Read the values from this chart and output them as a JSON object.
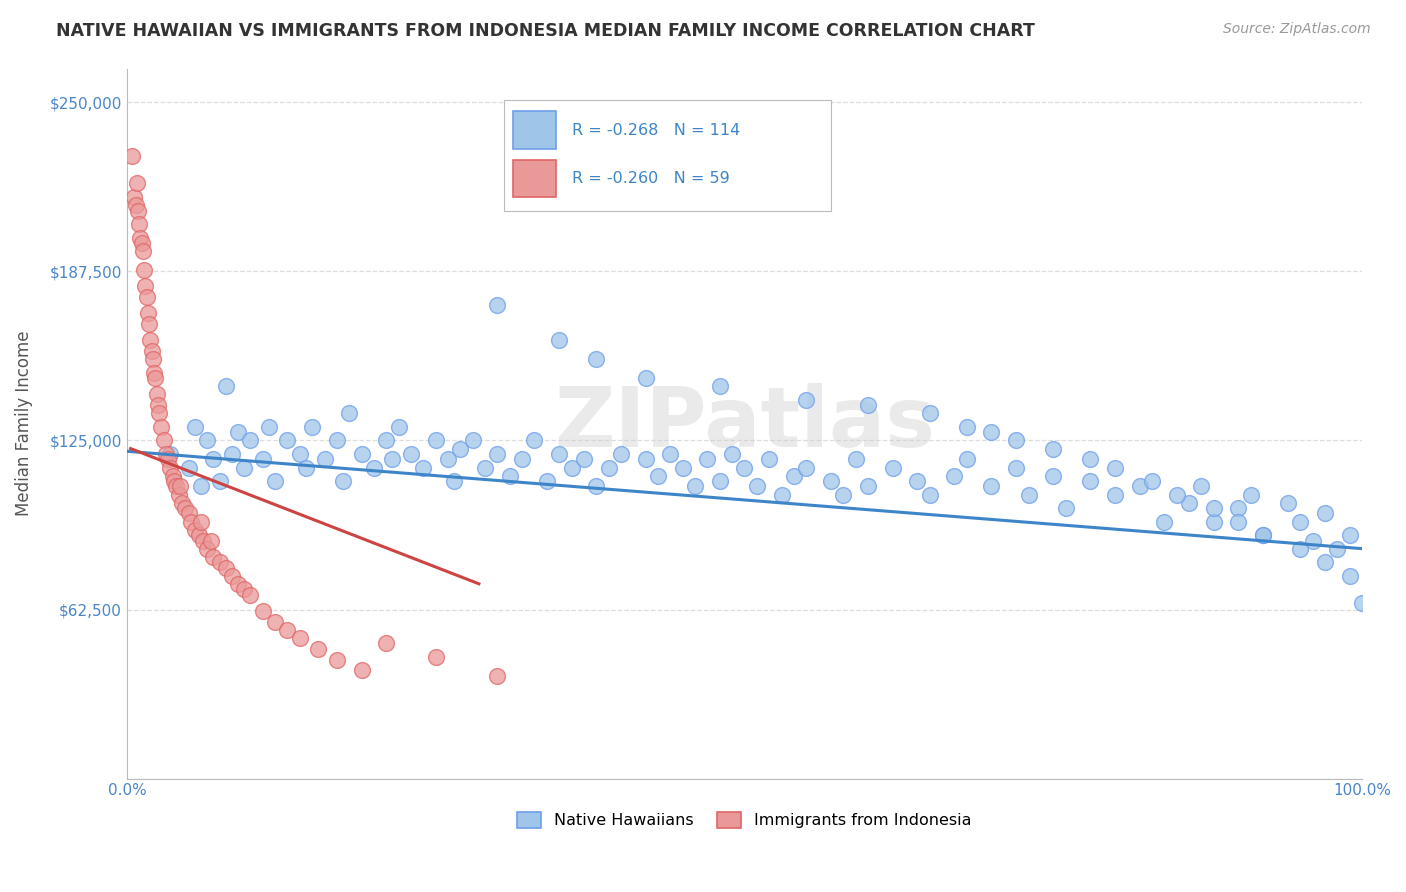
{
  "title": "NATIVE HAWAIIAN VS IMMIGRANTS FROM INDONESIA MEDIAN FAMILY INCOME CORRELATION CHART",
  "source": "Source: ZipAtlas.com",
  "ylabel": "Median Family Income",
  "xlim": [
    0,
    1.0
  ],
  "ylim": [
    0,
    262500
  ],
  "ytick_vals": [
    0,
    62500,
    125000,
    187500,
    250000
  ],
  "ytick_labels": [
    "",
    "$62,500",
    "$125,000",
    "$187,500",
    "$250,000"
  ],
  "xtick_vals": [
    0.0,
    1.0
  ],
  "xtick_labels": [
    "0.0%",
    "100.0%"
  ],
  "R_blue": "-0.268",
  "N_blue": "114",
  "R_pink": "-0.260",
  "N_pink": "59",
  "blue_fill": "#9fc5e8",
  "blue_edge": "#6d9eeb",
  "pink_fill": "#ea9999",
  "pink_edge": "#e06666",
  "blue_line": "#3d85c8",
  "pink_line": "#cc4444",
  "watermark": "ZIPatlas",
  "bg": "#ffffff",
  "grid_color": "#dddddd",
  "title_color": "#333333",
  "source_color": "#999999",
  "axis_tick_color": "#4a86c8",
  "blue_scatter_x": [
    0.035,
    0.05,
    0.055,
    0.06,
    0.065,
    0.07,
    0.075,
    0.08,
    0.085,
    0.09,
    0.095,
    0.1,
    0.11,
    0.115,
    0.12,
    0.13,
    0.14,
    0.145,
    0.15,
    0.16,
    0.17,
    0.175,
    0.18,
    0.19,
    0.2,
    0.21,
    0.215,
    0.22,
    0.23,
    0.24,
    0.25,
    0.26,
    0.265,
    0.27,
    0.28,
    0.29,
    0.3,
    0.31,
    0.32,
    0.33,
    0.34,
    0.35,
    0.36,
    0.37,
    0.38,
    0.39,
    0.4,
    0.42,
    0.43,
    0.44,
    0.45,
    0.46,
    0.47,
    0.48,
    0.49,
    0.5,
    0.51,
    0.52,
    0.53,
    0.54,
    0.55,
    0.57,
    0.58,
    0.59,
    0.6,
    0.62,
    0.64,
    0.65,
    0.67,
    0.68,
    0.7,
    0.72,
    0.73,
    0.75,
    0.76,
    0.78,
    0.8,
    0.82,
    0.84,
    0.86,
    0.87,
    0.88,
    0.9,
    0.91,
    0.92,
    0.94,
    0.95,
    0.96,
    0.97,
    0.98,
    0.99,
    1.0,
    0.3,
    0.35,
    0.38,
    0.42,
    0.48,
    0.55,
    0.6,
    0.65,
    0.68,
    0.7,
    0.72,
    0.75,
    0.78,
    0.8,
    0.83,
    0.85,
    0.88,
    0.9,
    0.92,
    0.95,
    0.97,
    0.99
  ],
  "blue_scatter_y": [
    120000,
    115000,
    130000,
    108000,
    125000,
    118000,
    110000,
    145000,
    120000,
    128000,
    115000,
    125000,
    118000,
    130000,
    110000,
    125000,
    120000,
    115000,
    130000,
    118000,
    125000,
    110000,
    135000,
    120000,
    115000,
    125000,
    118000,
    130000,
    120000,
    115000,
    125000,
    118000,
    110000,
    122000,
    125000,
    115000,
    120000,
    112000,
    118000,
    125000,
    110000,
    120000,
    115000,
    118000,
    108000,
    115000,
    120000,
    118000,
    112000,
    120000,
    115000,
    108000,
    118000,
    110000,
    120000,
    115000,
    108000,
    118000,
    105000,
    112000,
    115000,
    110000,
    105000,
    118000,
    108000,
    115000,
    110000,
    105000,
    112000,
    118000,
    108000,
    115000,
    105000,
    112000,
    100000,
    110000,
    105000,
    108000,
    95000,
    102000,
    108000,
    95000,
    100000,
    105000,
    90000,
    102000,
    95000,
    88000,
    98000,
    85000,
    90000,
    65000,
    175000,
    162000,
    155000,
    148000,
    145000,
    140000,
    138000,
    135000,
    130000,
    128000,
    125000,
    122000,
    118000,
    115000,
    110000,
    105000,
    100000,
    95000,
    90000,
    85000,
    80000,
    75000
  ],
  "pink_scatter_x": [
    0.004,
    0.006,
    0.007,
    0.008,
    0.009,
    0.01,
    0.011,
    0.012,
    0.013,
    0.014,
    0.015,
    0.016,
    0.017,
    0.018,
    0.019,
    0.02,
    0.021,
    0.022,
    0.023,
    0.024,
    0.025,
    0.026,
    0.028,
    0.03,
    0.032,
    0.033,
    0.035,
    0.037,
    0.038,
    0.04,
    0.042,
    0.043,
    0.045,
    0.047,
    0.05,
    0.052,
    0.055,
    0.058,
    0.06,
    0.062,
    0.065,
    0.068,
    0.07,
    0.075,
    0.08,
    0.085,
    0.09,
    0.095,
    0.1,
    0.11,
    0.12,
    0.13,
    0.14,
    0.155,
    0.17,
    0.19,
    0.21,
    0.25,
    0.3
  ],
  "pink_scatter_y": [
    230000,
    215000,
    212000,
    220000,
    210000,
    205000,
    200000,
    198000,
    195000,
    188000,
    182000,
    178000,
    172000,
    168000,
    162000,
    158000,
    155000,
    150000,
    148000,
    142000,
    138000,
    135000,
    130000,
    125000,
    120000,
    118000,
    115000,
    112000,
    110000,
    108000,
    105000,
    108000,
    102000,
    100000,
    98000,
    95000,
    92000,
    90000,
    95000,
    88000,
    85000,
    88000,
    82000,
    80000,
    78000,
    75000,
    72000,
    70000,
    68000,
    62000,
    58000,
    55000,
    52000,
    48000,
    44000,
    40000,
    50000,
    45000,
    38000
  ],
  "blue_trend_x": [
    0.0,
    1.0
  ],
  "blue_trend_y": [
    121000,
    85000
  ],
  "pink_trend_x": [
    0.003,
    0.285
  ],
  "pink_trend_y": [
    122000,
    72000
  ]
}
